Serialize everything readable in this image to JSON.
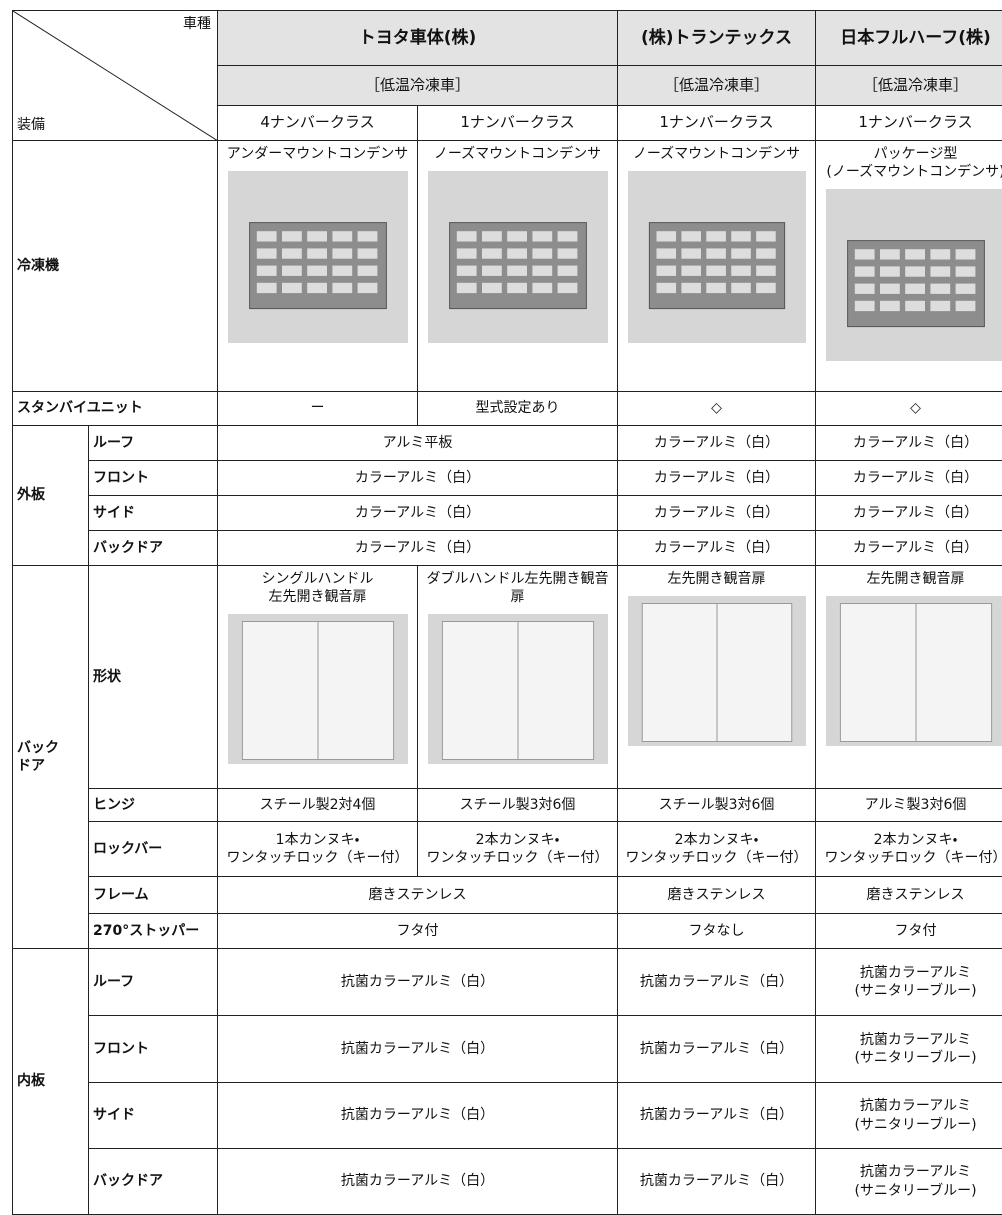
{
  "header": {
    "corner_top": "車種",
    "corner_bottom": "装備",
    "makers": [
      "トヨタ車体(株)",
      "(株)トランテックス",
      "日本フルハーフ(株)"
    ],
    "types": [
      "［低温冷凍車］",
      "［低温冷凍車］",
      "［低温冷凍車］"
    ],
    "classes": [
      "4ナンバークラス",
      "1ナンバークラス",
      "1ナンバークラス",
      "1ナンバークラス"
    ]
  },
  "sections": [
    {
      "label": "冷凍機",
      "cells": [
        "アンダーマウントコンデンサ",
        "ノーズマウントコンデンサ",
        "ノーズマウントコンデンサ",
        "パッケージ型\n(ノーズマウントコンデンサ)"
      ]
    },
    {
      "label": "スタンバイユニット",
      "cells": [
        "ー",
        "型式設定あり",
        "◇",
        "◇"
      ]
    },
    {
      "label": "外板",
      "rows": [
        {
          "label": "ルーフ",
          "cells": [
            "アルミ平板",
            "カラーアルミ（白）",
            "カラーアルミ（白）"
          ]
        },
        {
          "label": "フロント",
          "cells": [
            "カラーアルミ（白）",
            "カラーアルミ（白）",
            "カラーアルミ（白）"
          ]
        },
        {
          "label": "サイド",
          "cells": [
            "カラーアルミ（白）",
            "カラーアルミ（白）",
            "カラーアルミ（白）"
          ]
        },
        {
          "label": "バックドア",
          "cells": [
            "カラーアルミ（白）",
            "カラーアルミ（白）",
            "カラーアルミ（白）"
          ]
        }
      ]
    },
    {
      "label": "バック\nドア",
      "rows": [
        {
          "label": "形状",
          "cells": [
            "シングルハンドル\n左先開き観音扉",
            "ダブルハンドル左先開き観音扉",
            "左先開き観音扉",
            "左先開き観音扉"
          ]
        },
        {
          "label": "ヒンジ",
          "cells": [
            "スチール製2対4個",
            "スチール製3対6個",
            "スチール製3対6個",
            "アルミ製3対6個"
          ]
        },
        {
          "label": "ロックバー",
          "cells": [
            "1本カンヌキ・\nワンタッチロック（キー付）",
            "2本カンヌキ・\nワンタッチロック（キー付）",
            "2本カンヌキ・\nワンタッチロック（キー付）",
            "2本カンヌキ・\nワンタッチロック（キー付）"
          ]
        },
        {
          "label": "フレーム",
          "cells": [
            "磨きステンレス",
            "磨きステンレス",
            "磨きステンレス"
          ]
        },
        {
          "label": "270°ストッパー",
          "cells": [
            "フタ付",
            "フタなし",
            "フタ付"
          ]
        }
      ]
    },
    {
      "label": "内板",
      "rows": [
        {
          "label": "ルーフ",
          "cells": [
            "抗菌カラーアルミ（白）",
            "抗菌カラーアルミ（白）",
            "抗菌カラーアルミ\n(サニタリーブルー)"
          ]
        },
        {
          "label": "フロント",
          "cells": [
            "抗菌カラーアルミ（白）",
            "抗菌カラーアルミ（白）",
            "抗菌カラーアルミ\n(サニタリーブルー)"
          ]
        },
        {
          "label": "サイド",
          "cells": [
            "抗菌カラーアルミ（白）",
            "抗菌カラーアルミ（白）",
            "抗菌カラーアルミ\n(サニタリーブルー)"
          ]
        },
        {
          "label": "バックドア",
          "cells": [
            "抗菌カラーアルミ（白）",
            "抗菌カラーアルミ（白）",
            "抗菌カラーアルミ\n(サニタリーブルー)"
          ]
        }
      ]
    }
  ]
}
